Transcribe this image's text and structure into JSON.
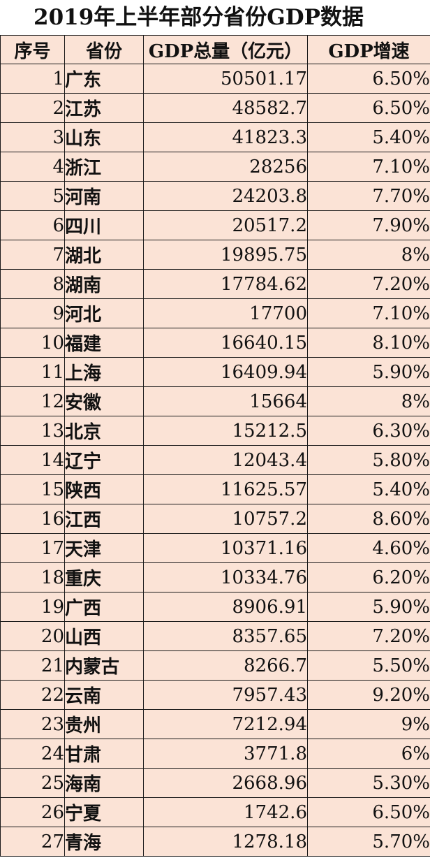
{
  "title": "2019年上半年部分省份GDP数据",
  "headers": {
    "no": "序号",
    "province": "省份",
    "gdp": "GDP总量（亿元）",
    "growth": "GDP增速"
  },
  "rows": [
    {
      "no": "1",
      "province": "广东",
      "gdp": "50501.17",
      "growth": "6.50%"
    },
    {
      "no": "2",
      "province": "江苏",
      "gdp": "48582.7",
      "growth": "6.50%"
    },
    {
      "no": "3",
      "province": "山东",
      "gdp": "41823.3",
      "growth": "5.40%"
    },
    {
      "no": "4",
      "province": "浙江",
      "gdp": "28256",
      "growth": "7.10%"
    },
    {
      "no": "5",
      "province": "河南",
      "gdp": "24203.8",
      "growth": "7.70%"
    },
    {
      "no": "6",
      "province": "四川",
      "gdp": "20517.2",
      "growth": "7.90%"
    },
    {
      "no": "7",
      "province": "湖北",
      "gdp": "19895.75",
      "growth": "8%"
    },
    {
      "no": "8",
      "province": "湖南",
      "gdp": "17784.62",
      "growth": "7.20%"
    },
    {
      "no": "9",
      "province": "河北",
      "gdp": "17700",
      "growth": "7.10%"
    },
    {
      "no": "10",
      "province": "福建",
      "gdp": "16640.15",
      "growth": "8.10%"
    },
    {
      "no": "11",
      "province": "上海",
      "gdp": "16409.94",
      "growth": "5.90%"
    },
    {
      "no": "12",
      "province": "安徽",
      "gdp": "15664",
      "growth": "8%"
    },
    {
      "no": "13",
      "province": "北京",
      "gdp": "15212.5",
      "growth": "6.30%"
    },
    {
      "no": "14",
      "province": "辽宁",
      "gdp": "12043.4",
      "growth": "5.80%"
    },
    {
      "no": "15",
      "province": "陕西",
      "gdp": "11625.57",
      "growth": "5.40%"
    },
    {
      "no": "16",
      "province": "江西",
      "gdp": "10757.2",
      "growth": "8.60%"
    },
    {
      "no": "17",
      "province": "天津",
      "gdp": "10371.16",
      "growth": "4.60%"
    },
    {
      "no": "18",
      "province": "重庆",
      "gdp": "10334.76",
      "growth": "6.20%"
    },
    {
      "no": "19",
      "province": "广西",
      "gdp": "8906.91",
      "growth": "5.90%"
    },
    {
      "no": "20",
      "province": "山西",
      "gdp": "8357.65",
      "growth": "7.20%"
    },
    {
      "no": "21",
      "province": "内蒙古",
      "gdp": "8266.7",
      "growth": "5.50%"
    },
    {
      "no": "22",
      "province": "云南",
      "gdp": "7957.43",
      "growth": "9.20%"
    },
    {
      "no": "23",
      "province": "贵州",
      "gdp": "7212.94",
      "growth": "9%"
    },
    {
      "no": "24",
      "province": "甘肃",
      "gdp": "3771.8",
      "growth": "6%"
    },
    {
      "no": "25",
      "province": "海南",
      "gdp": "2668.96",
      "growth": "5.30%"
    },
    {
      "no": "26",
      "province": "宁夏",
      "gdp": "1742.6",
      "growth": "6.50%"
    },
    {
      "no": "27",
      "province": "青海",
      "gdp": "1278.18",
      "growth": "5.70%"
    }
  ],
  "colors": {
    "cell_background": "#fbe3d6",
    "border": "#1a1a1a",
    "title_background": "#ffffff"
  }
}
